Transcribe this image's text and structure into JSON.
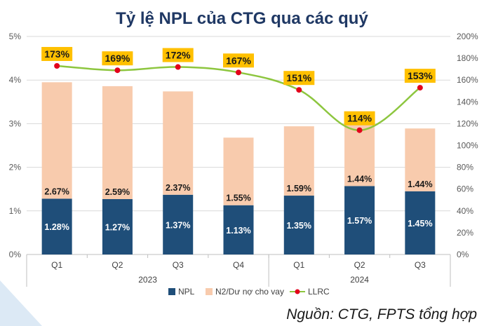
{
  "chart_data": {
    "type": "bar",
    "title": "Tỷ lệ NPL của CTG qua các quý",
    "categories": [
      "Q1",
      "Q2",
      "Q3",
      "Q4",
      "Q1",
      "Q2",
      "Q3"
    ],
    "years": [
      {
        "label": "2023",
        "from": 0,
        "to": 3
      },
      {
        "label": "2024",
        "from": 4,
        "to": 6
      }
    ],
    "series": [
      {
        "name": "NPL",
        "kind": "bar",
        "axis": "left",
        "color": "#1f4e79",
        "values": [
          1.28,
          1.27,
          1.37,
          1.13,
          1.35,
          1.57,
          1.45
        ],
        "labels": [
          "1.28%",
          "1.27%",
          "1.37%",
          "1.13%",
          "1.35%",
          "1.57%",
          "1.45%"
        ]
      },
      {
        "name": "N2/Dư nợ cho vay",
        "kind": "bar-stacked",
        "axis": "left",
        "color": "#f8cbad",
        "values": [
          2.67,
          2.59,
          2.37,
          1.55,
          1.59,
          1.44,
          1.44
        ],
        "labels": [
          "2.67%",
          "2.59%",
          "2.37%",
          "1.55%",
          "1.59%",
          "1.44%",
          "1.44%"
        ]
      },
      {
        "name": "LLRC",
        "kind": "line",
        "axis": "right",
        "color": "#8dc63f",
        "marker_color": "#e3001b",
        "values": [
          173,
          169,
          172,
          167,
          151,
          114,
          153
        ],
        "labels": [
          "173%",
          "169%",
          "172%",
          "167%",
          "151%",
          "114%",
          "153%"
        ]
      }
    ],
    "left_axis": {
      "min": 0,
      "max": 5,
      "step": 1,
      "ticks": [
        "0%",
        "1%",
        "2%",
        "3%",
        "4%",
        "5%"
      ]
    },
    "right_axis": {
      "min": 0,
      "max": 200,
      "step": 20,
      "ticks": [
        "0%",
        "20%",
        "40%",
        "60%",
        "80%",
        "100%",
        "120%",
        "140%",
        "160%",
        "180%",
        "200%"
      ]
    },
    "legend_position": "bottom",
    "label_box_color": "#ffc000",
    "title_color": "#1f3864",
    "source": "Nguồn: CTG, FPTS tổng hợp"
  }
}
